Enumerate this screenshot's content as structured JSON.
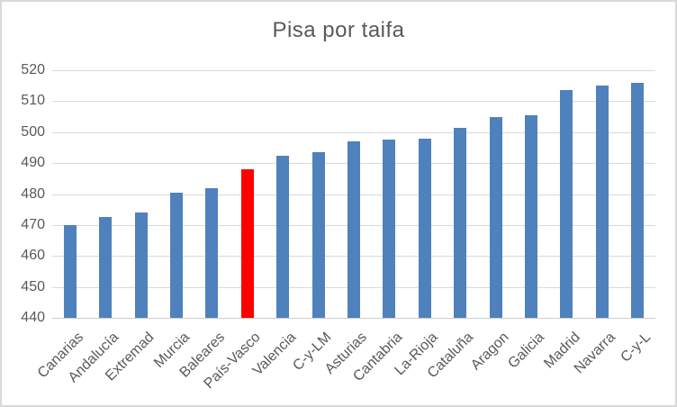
{
  "chart_data": {
    "type": "bar",
    "title": "Pisa por taifa",
    "categories": [
      "Canarias",
      "Andalucía",
      "Extremad",
      "Murcia",
      "Baleares",
      "País-Vasco",
      "Valencia",
      "C-y-LM",
      "Asturias",
      "Cantabria",
      "La-Rioja",
      "Cataluña",
      "Aragon",
      "Galicia",
      "Madrid",
      "Navarra",
      "C-y-L"
    ],
    "values": [
      470,
      472.5,
      474,
      480.5,
      482,
      488,
      492.5,
      493.5,
      497,
      497.5,
      498,
      501.5,
      505,
      505.5,
      513.5,
      515,
      516
    ],
    "highlight_index": 5,
    "highlight_category": "País-Vasco",
    "bar_color": "#4F81BD",
    "highlight_color": "#FF0000",
    "text_color": "#595959",
    "gridline_color": "#D9D9D9",
    "ylim": [
      440,
      520
    ],
    "yticks": [
      440,
      450,
      460,
      470,
      480,
      490,
      500,
      510,
      520
    ],
    "xlabel": "",
    "ylabel": "",
    "grid": true,
    "legend": false
  }
}
